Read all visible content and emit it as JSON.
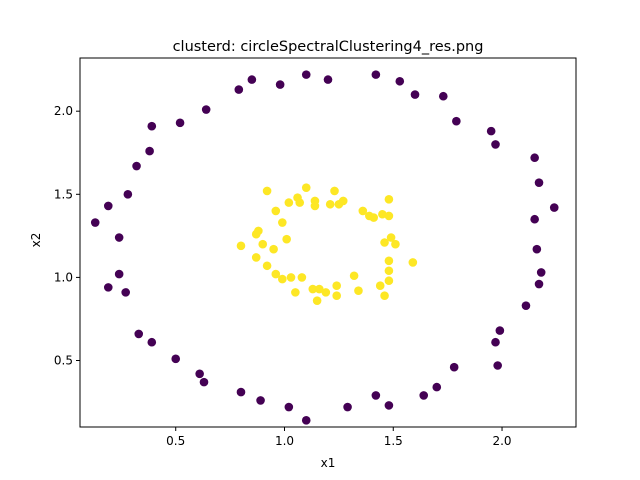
{
  "chart_data": {
    "type": "scatter",
    "title": "clusterd: circleSpectralClustering4_res.png",
    "xlabel": "x1",
    "ylabel": "x2",
    "xlim": [
      0.06,
      2.34
    ],
    "ylim": [
      0.1,
      2.32
    ],
    "xticks": [
      0.5,
      1.0,
      1.5,
      2.0
    ],
    "xtick_labels": [
      "0.5",
      "1.0",
      "1.5",
      "2.0"
    ],
    "yticks": [
      0.5,
      1.0,
      1.5,
      2.0
    ],
    "ytick_labels": [
      "0.5",
      "1.0",
      "1.5",
      "2.0"
    ],
    "grid": false,
    "legend": "none",
    "colors": {
      "cluster_0": "#440154",
      "cluster_1": "#fde725",
      "axes": "#000000",
      "background": "#ffffff"
    },
    "series": [
      {
        "cluster": 0,
        "color": "#440154",
        "points": [
          [
            1.1,
            2.22
          ],
          [
            1.42,
            2.22
          ],
          [
            0.85,
            2.19
          ],
          [
            1.2,
            2.19
          ],
          [
            1.53,
            2.18
          ],
          [
            0.79,
            2.13
          ],
          [
            0.98,
            2.16
          ],
          [
            1.6,
            2.1
          ],
          [
            1.73,
            2.09
          ],
          [
            0.64,
            2.01
          ],
          [
            0.52,
            1.93
          ],
          [
            0.39,
            1.91
          ],
          [
            1.79,
            1.94
          ],
          [
            1.95,
            1.88
          ],
          [
            0.38,
            1.76
          ],
          [
            1.97,
            1.8
          ],
          [
            2.15,
            1.72
          ],
          [
            0.32,
            1.67
          ],
          [
            2.17,
            1.57
          ],
          [
            0.28,
            1.5
          ],
          [
            0.19,
            1.43
          ],
          [
            2.24,
            1.42
          ],
          [
            0.13,
            1.33
          ],
          [
            2.15,
            1.35
          ],
          [
            0.24,
            1.24
          ],
          [
            2.16,
            1.17
          ],
          [
            0.24,
            1.02
          ],
          [
            2.18,
            1.03
          ],
          [
            0.19,
            0.94
          ],
          [
            2.17,
            0.96
          ],
          [
            0.27,
            0.91
          ],
          [
            2.11,
            0.83
          ],
          [
            0.33,
            0.66
          ],
          [
            1.99,
            0.68
          ],
          [
            0.39,
            0.61
          ],
          [
            1.97,
            0.61
          ],
          [
            0.5,
            0.51
          ],
          [
            1.98,
            0.47
          ],
          [
            0.61,
            0.42
          ],
          [
            1.78,
            0.46
          ],
          [
            0.63,
            0.37
          ],
          [
            1.7,
            0.34
          ],
          [
            0.8,
            0.31
          ],
          [
            1.64,
            0.29
          ],
          [
            0.89,
            0.26
          ],
          [
            1.42,
            0.29
          ],
          [
            1.02,
            0.22
          ],
          [
            1.48,
            0.23
          ],
          [
            1.1,
            0.14
          ],
          [
            1.29,
            0.22
          ]
        ]
      },
      {
        "cluster": 1,
        "color": "#fde725",
        "points": [
          [
            0.92,
            1.52
          ],
          [
            1.1,
            1.54
          ],
          [
            1.23,
            1.52
          ],
          [
            1.06,
            1.48
          ],
          [
            1.14,
            1.46
          ],
          [
            1.02,
            1.45
          ],
          [
            1.07,
            1.45
          ],
          [
            1.14,
            1.43
          ],
          [
            1.21,
            1.44
          ],
          [
            1.25,
            1.44
          ],
          [
            1.27,
            1.46
          ],
          [
            1.36,
            1.4
          ],
          [
            1.39,
            1.37
          ],
          [
            1.41,
            1.36
          ],
          [
            1.45,
            1.38
          ],
          [
            1.48,
            1.37
          ],
          [
            1.48,
            1.47
          ],
          [
            0.96,
            1.4
          ],
          [
            0.99,
            1.33
          ],
          [
            0.88,
            1.28
          ],
          [
            0.87,
            1.26
          ],
          [
            0.8,
            1.19
          ],
          [
            0.9,
            1.2
          ],
          [
            0.95,
            1.17
          ],
          [
            1.01,
            1.23
          ],
          [
            0.87,
            1.12
          ],
          [
            0.92,
            1.07
          ],
          [
            0.96,
            1.02
          ],
          [
            0.99,
            0.99
          ],
          [
            1.03,
            1.0
          ],
          [
            1.08,
            1.0
          ],
          [
            1.05,
            0.91
          ],
          [
            1.13,
            0.93
          ],
          [
            1.15,
            0.86
          ],
          [
            1.16,
            0.93
          ],
          [
            1.19,
            0.91
          ],
          [
            1.24,
            0.89
          ],
          [
            1.24,
            0.95
          ],
          [
            1.32,
            1.01
          ],
          [
            1.34,
            0.92
          ],
          [
            1.44,
            0.95
          ],
          [
            1.46,
            0.89
          ],
          [
            1.48,
            0.98
          ],
          [
            1.48,
            1.04
          ],
          [
            1.48,
            1.1
          ],
          [
            1.46,
            1.21
          ],
          [
            1.49,
            1.24
          ],
          [
            1.51,
            1.2
          ],
          [
            1.59,
            1.09
          ]
        ]
      }
    ]
  }
}
